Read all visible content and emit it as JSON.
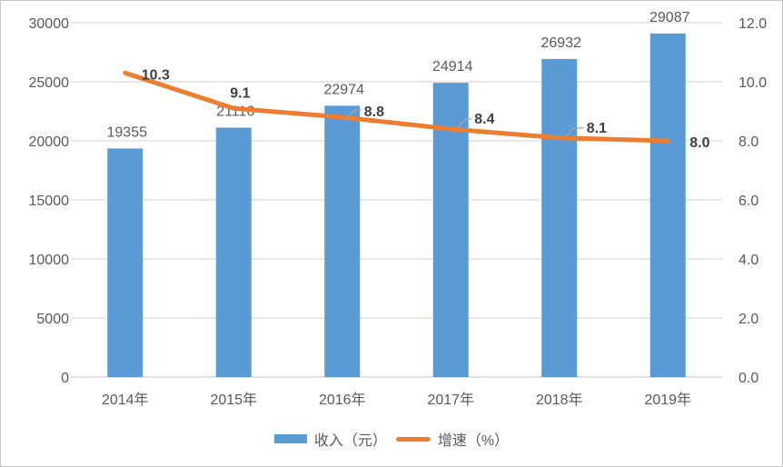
{
  "chart_data": {
    "type": "combo-bar-line",
    "categories": [
      "2014年",
      "2015年",
      "2016年",
      "2017年",
      "2018年",
      "2019年"
    ],
    "series": [
      {
        "name": "收入（元）",
        "type": "bar",
        "axis": "left",
        "values": [
          19355,
          21116,
          22974,
          24914,
          26932,
          29087
        ],
        "labels": [
          "19355",
          "21116",
          "22974",
          "24914",
          "26932",
          "29087"
        ],
        "color": "#5B9BD5"
      },
      {
        "name": "增速（%）",
        "type": "line",
        "axis": "right",
        "values": [
          10.3,
          9.1,
          8.8,
          8.4,
          8.1,
          8.0
        ],
        "labels": [
          "10.3",
          "9.1",
          "8.8",
          "8.4",
          "8.1",
          "8.0"
        ],
        "color": "#ED7D31"
      }
    ],
    "left_axis": {
      "min": 0,
      "max": 30000,
      "step": 5000,
      "ticks": [
        "0",
        "5000",
        "10000",
        "15000",
        "20000",
        "25000",
        "30000"
      ]
    },
    "right_axis": {
      "min": 0,
      "max": 12,
      "step": 2,
      "ticks": [
        "0.0",
        "2.0",
        "4.0",
        "6.0",
        "8.0",
        "10.0",
        "12.0"
      ]
    },
    "grid": true,
    "legend_position": "bottom",
    "title": "",
    "colors": {
      "bar": "#5B9BD5",
      "line": "#ED7D31",
      "gridline": "#D9D9D9",
      "axis_line": "#D9D9D9",
      "axis_text": "#595959",
      "bar_label_text": "#595959",
      "line_label_text": "#3F3F3F",
      "leader_line": "#A6A6A6",
      "legend_text": "#595959",
      "background": "#FFFFFF"
    }
  }
}
